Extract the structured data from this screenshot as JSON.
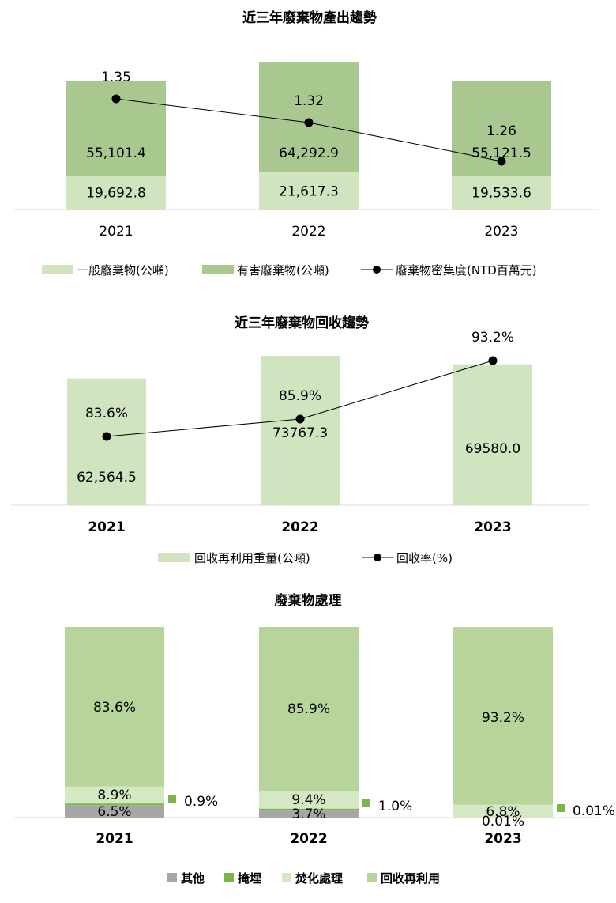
{
  "chart_data": [
    {
      "type": "bar",
      "stacked": true,
      "title": "近三年廢棄物產出趨勢",
      "categories": [
        "2021",
        "2022",
        "2023"
      ],
      "series": [
        {
          "name": "一般廢棄物(公噸)",
          "kind": "bar",
          "values": [
            19692.8,
            21617.3,
            19533.6
          ],
          "labels": [
            "19,692.8",
            "21,617.3",
            "19,533.6"
          ],
          "color": "#d0e5bf"
        },
        {
          "name": "有害廢棄物(公噸)",
          "kind": "bar",
          "values": [
            55101.4,
            64292.9,
            55121.5
          ],
          "labels": [
            "55,101.4",
            "64,292.9",
            "55,121.5"
          ],
          "color": "#a9c890"
        },
        {
          "name": "廢棄物密集度(NTD百萬元)",
          "kind": "line",
          "values": [
            1.35,
            1.32,
            1.26
          ],
          "labels": [
            "1.35",
            "1.32",
            "1.26"
          ],
          "color": "#000000"
        }
      ],
      "legend_position": "bottom",
      "grid": false
    },
    {
      "type": "bar",
      "title": "近三年廢棄物回收趨勢",
      "categories": [
        "2021",
        "2022",
        "2023"
      ],
      "series": [
        {
          "name": "回收再利用重量(公噸)",
          "kind": "bar",
          "values": [
            62564.5,
            73767.3,
            69580.0
          ],
          "labels": [
            "62,564.5",
            "73767.3",
            "69580.0"
          ],
          "color": "#d0e5bf"
        },
        {
          "name": "回收率(%)",
          "kind": "line",
          "values": [
            83.6,
            85.9,
            93.2
          ],
          "labels": [
            "83.6%",
            "85.9%",
            "93.2%"
          ],
          "color": "#000000"
        }
      ],
      "legend_position": "bottom",
      "grid": false
    },
    {
      "type": "bar",
      "stacked": true,
      "unit": "%",
      "title": "廢棄物處理",
      "categories": [
        "2021",
        "2022",
        "2023"
      ],
      "series": [
        {
          "name": "其他",
          "values": [
            6.5,
            3.7,
            0.01
          ],
          "labels": [
            "6.5%",
            "3.7%",
            "0.01%"
          ],
          "color": "#a6a6a6"
        },
        {
          "name": "掩埋",
          "values": [
            0.9,
            1.0,
            0.01
          ],
          "labels": [
            "0.9%",
            "1.0%",
            "0.01%"
          ],
          "color": "#7ab648"
        },
        {
          "name": "焚化處理",
          "values": [
            8.9,
            9.4,
            6.8
          ],
          "labels": [
            "8.9%",
            "9.4%",
            "6.8%"
          ],
          "color": "#d5e8c4"
        },
        {
          "name": "回收再利用",
          "values": [
            83.6,
            85.9,
            93.2
          ],
          "labels": [
            "83.6%",
            "85.9%",
            "93.2%"
          ],
          "color": "#b7d59a"
        }
      ],
      "legend_position": "bottom",
      "grid": false
    }
  ]
}
